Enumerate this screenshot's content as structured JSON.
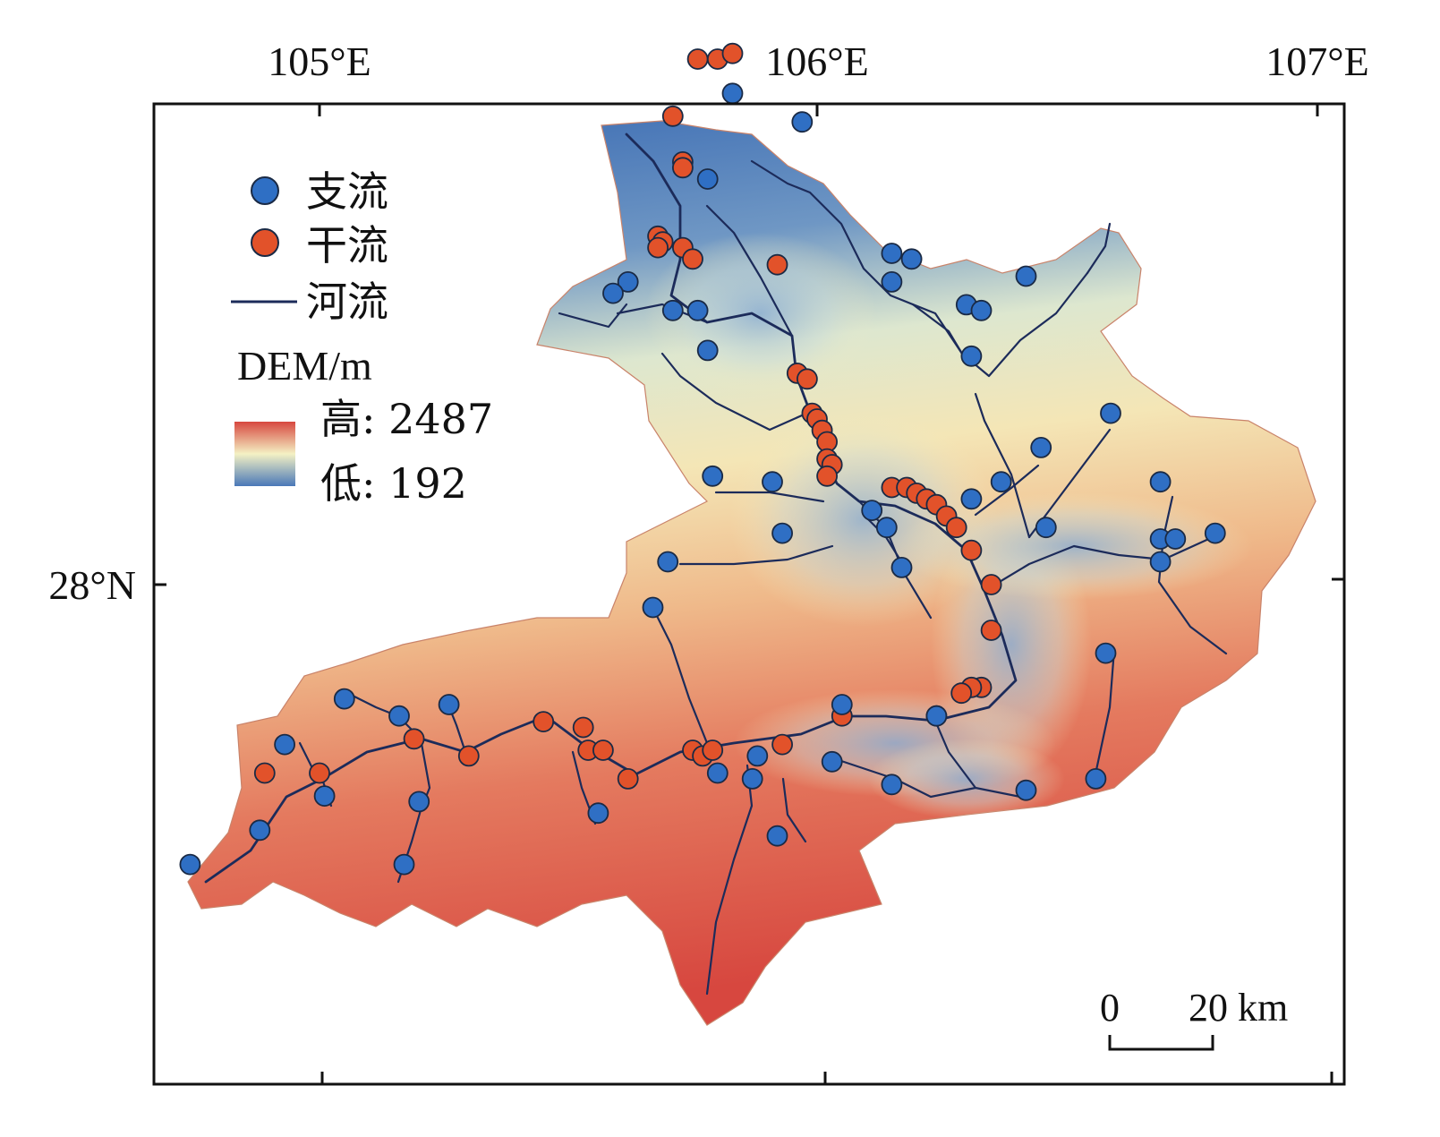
{
  "axes": {
    "lon_ticks": [
      "105°E",
      "106°E",
      "107°E"
    ],
    "lat_ticks": [
      "28°N"
    ]
  },
  "legend": {
    "tributary_label": "支流",
    "mainstream_label": "干流",
    "river_label": "河流",
    "dem_title": "DEM/m",
    "high_label": "高: 2487",
    "low_label": "低: 192",
    "colors": {
      "tributary": "#2f6fc4",
      "mainstream": "#e2522a",
      "river": "#1c2b5a",
      "dem_high": "#d7473f",
      "dem_mid": "#f4f1c4",
      "dem_low": "#4a78b8"
    }
  },
  "scale_bar": {
    "zero_label": "0",
    "length_label": "20 km"
  },
  "stations": {
    "tributary": [
      [
        105.83,
        28.86
      ],
      [
        105.97,
        28.81
      ],
      [
        105.78,
        28.71
      ],
      [
        106.15,
        28.58
      ],
      [
        106.19,
        28.57
      ],
      [
        106.15,
        28.53
      ],
      [
        106.42,
        28.54
      ],
      [
        106.3,
        28.49
      ],
      [
        106.33,
        28.48
      ],
      [
        106.31,
        28.4
      ],
      [
        105.62,
        28.53
      ],
      [
        105.59,
        28.51
      ],
      [
        105.71,
        28.48
      ],
      [
        105.76,
        28.48
      ],
      [
        105.78,
        28.41
      ],
      [
        106.59,
        28.3
      ],
      [
        106.45,
        28.24
      ],
      [
        106.69,
        28.18
      ],
      [
        105.79,
        28.19
      ],
      [
        105.91,
        28.18
      ],
      [
        106.37,
        28.18
      ],
      [
        106.31,
        28.15
      ],
      [
        106.11,
        28.13
      ],
      [
        106.14,
        28.1
      ],
      [
        106.46,
        28.1
      ],
      [
        106.8,
        28.09
      ],
      [
        106.69,
        28.08
      ],
      [
        106.72,
        28.08
      ],
      [
        105.93,
        28.09
      ],
      [
        105.7,
        28.04
      ],
      [
        106.17,
        28.03
      ],
      [
        106.69,
        28.04
      ],
      [
        105.67,
        27.96
      ],
      [
        106.58,
        27.88
      ],
      [
        105.05,
        27.8
      ],
      [
        105.16,
        27.77
      ],
      [
        105.26,
        27.79
      ],
      [
        106.05,
        27.79
      ],
      [
        106.24,
        27.77
      ],
      [
        104.93,
        27.72
      ],
      [
        105.88,
        27.7
      ],
      [
        106.03,
        27.69
      ],
      [
        105.8,
        27.67
      ],
      [
        105.87,
        27.66
      ],
      [
        106.15,
        27.65
      ],
      [
        106.42,
        27.64
      ],
      [
        106.56,
        27.66
      ],
      [
        105.01,
        27.63
      ],
      [
        105.2,
        27.62
      ],
      [
        105.56,
        27.6
      ],
      [
        104.88,
        27.57
      ],
      [
        105.92,
        27.56
      ],
      [
        104.74,
        27.51
      ],
      [
        105.17,
        27.51
      ]
    ],
    "mainstream": [
      [
        105.76,
        28.92
      ],
      [
        105.8,
        28.92
      ],
      [
        105.83,
        28.93
      ],
      [
        105.71,
        28.82
      ],
      [
        105.73,
        28.74
      ],
      [
        105.73,
        28.73
      ],
      [
        105.68,
        28.61
      ],
      [
        105.69,
        28.6
      ],
      [
        105.68,
        28.59
      ],
      [
        105.73,
        28.59
      ],
      [
        105.75,
        28.57
      ],
      [
        105.92,
        28.56
      ],
      [
        105.96,
        28.37
      ],
      [
        105.98,
        28.36
      ],
      [
        105.99,
        28.3
      ],
      [
        106.0,
        28.29
      ],
      [
        106.01,
        28.27
      ],
      [
        106.02,
        28.25
      ],
      [
        106.02,
        28.22
      ],
      [
        106.03,
        28.21
      ],
      [
        106.02,
        28.19
      ],
      [
        106.15,
        28.17
      ],
      [
        106.18,
        28.17
      ],
      [
        106.2,
        28.16
      ],
      [
        106.22,
        28.15
      ],
      [
        106.24,
        28.14
      ],
      [
        106.26,
        28.12
      ],
      [
        106.28,
        28.1
      ],
      [
        106.31,
        28.06
      ],
      [
        106.35,
        28.0
      ],
      [
        106.35,
        27.92
      ],
      [
        106.33,
        27.82
      ],
      [
        106.31,
        27.82
      ],
      [
        106.29,
        27.81
      ],
      [
        106.24,
        27.77
      ],
      [
        106.05,
        27.77
      ],
      [
        105.45,
        27.76
      ],
      [
        105.53,
        27.75
      ],
      [
        105.54,
        27.71
      ],
      [
        105.57,
        27.71
      ],
      [
        105.19,
        27.73
      ],
      [
        105.3,
        27.7
      ],
      [
        105.75,
        27.71
      ],
      [
        105.77,
        27.7
      ],
      [
        105.79,
        27.71
      ],
      [
        105.93,
        27.72
      ],
      [
        104.89,
        27.67
      ],
      [
        105.0,
        27.67
      ],
      [
        105.62,
        27.66
      ]
    ]
  }
}
